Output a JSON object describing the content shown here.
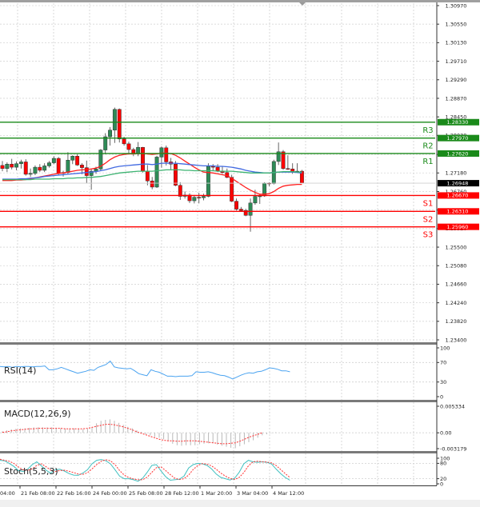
{
  "chart_data": {
    "type": "candlestick",
    "title": "",
    "instrument_note": "",
    "price_axis": {
      "min": 1.234,
      "max": 1.3097,
      "ticks": [
        "1.30970",
        "1.30550",
        "1.30130",
        "1.29710",
        "1.29290",
        "1.28870",
        "1.28450",
        "1.28030",
        "1.27600",
        "1.27180",
        "1.26760",
        "1.26340",
        "1.25920",
        "1.25500",
        "1.25080",
        "1.24660",
        "1.24240",
        "1.23820",
        "1.23400"
      ]
    },
    "time_axis": {
      "labels": [
        "04:00",
        "21 Feb 08:00",
        "22 Feb 16:00",
        "24 Feb 00:00",
        "25 Feb 08:00",
        "28 Feb 12:00",
        "1 Mar 20:00",
        "3 Mar 04:00",
        "4 Mar 12:00"
      ]
    },
    "current_price": {
      "value": "1.26948",
      "color": "#000000"
    },
    "levels": [
      {
        "name": "R3",
        "value": "1.28330",
        "color": "#1a8a1a",
        "type": "resistance"
      },
      {
        "name": "R2",
        "value": "1.27970",
        "color": "#1a8a1a",
        "type": "resistance"
      },
      {
        "name": "R1",
        "value": "1.27620",
        "color": "#1a8a1a",
        "type": "resistance"
      },
      {
        "name": "S1",
        "value": "1.26670",
        "color": "#ff0000",
        "type": "support"
      },
      {
        "name": "S2",
        "value": "1.26310",
        "color": "#ff0000",
        "type": "support"
      },
      {
        "name": "S3",
        "value": "1.25960",
        "color": "#ff0000",
        "type": "support"
      }
    ],
    "candles": [
      [
        1.2735,
        1.2745,
        1.2722,
        1.2728
      ],
      [
        1.2728,
        1.2742,
        1.272,
        1.2738
      ],
      [
        1.2738,
        1.275,
        1.2726,
        1.2731
      ],
      [
        1.2731,
        1.2744,
        1.2724,
        1.2739
      ],
      [
        1.2739,
        1.2748,
        1.2728,
        1.2743
      ],
      [
        1.2743,
        1.2749,
        1.2712,
        1.2715
      ],
      [
        1.2715,
        1.2728,
        1.2709,
        1.2717
      ],
      [
        1.2717,
        1.2735,
        1.2713,
        1.2731
      ],
      [
        1.2731,
        1.2738,
        1.272,
        1.2724
      ],
      [
        1.2724,
        1.274,
        1.272,
        1.2734
      ],
      [
        1.2734,
        1.2745,
        1.273,
        1.2741
      ],
      [
        1.2741,
        1.2756,
        1.2738,
        1.2751
      ],
      [
        1.2751,
        1.2754,
        1.2714,
        1.2717
      ],
      [
        1.2717,
        1.2723,
        1.271,
        1.2719
      ],
      [
        1.2719,
        1.2765,
        1.2715,
        1.2747
      ],
      [
        1.2747,
        1.2758,
        1.2738,
        1.2756
      ],
      [
        1.2756,
        1.276,
        1.2734,
        1.2736
      ],
      [
        1.2736,
        1.274,
        1.2715,
        1.273
      ],
      [
        1.273,
        1.2746,
        1.2695,
        1.2712
      ],
      [
        1.2712,
        1.2728,
        1.268,
        1.2722
      ],
      [
        1.2722,
        1.2732,
        1.2716,
        1.2727
      ],
      [
        1.2727,
        1.2772,
        1.2724,
        1.277
      ],
      [
        1.277,
        1.2808,
        1.276,
        1.28
      ],
      [
        1.28,
        1.2822,
        1.278,
        1.2815
      ],
      [
        1.2815,
        1.2866,
        1.2786,
        1.2862
      ],
      [
        1.2862,
        1.2864,
        1.2787,
        1.2795
      ],
      [
        1.2795,
        1.28,
        1.278,
        1.2784
      ],
      [
        1.2784,
        1.2789,
        1.2763,
        1.2771
      ],
      [
        1.2771,
        1.2775,
        1.2756,
        1.2761
      ],
      [
        1.2761,
        1.2788,
        1.2756,
        1.2776
      ],
      [
        1.2776,
        1.2777,
        1.2719,
        1.2722
      ],
      [
        1.2722,
        1.2736,
        1.269,
        1.27
      ],
      [
        1.27,
        1.2709,
        1.2681,
        1.2686
      ],
      [
        1.2686,
        1.2757,
        1.2684,
        1.2754
      ],
      [
        1.2754,
        1.2778,
        1.273,
        1.2775
      ],
      [
        1.2775,
        1.278,
        1.2735,
        1.2743
      ],
      [
        1.2743,
        1.2752,
        1.2726,
        1.2738
      ],
      [
        1.2738,
        1.2745,
        1.2688,
        1.269
      ],
      [
        1.269,
        1.2697,
        1.2657,
        1.2665
      ],
      [
        1.2665,
        1.2676,
        1.266,
        1.2668
      ],
      [
        1.2668,
        1.2672,
        1.265,
        1.2655
      ],
      [
        1.2655,
        1.2668,
        1.2649,
        1.2663
      ],
      [
        1.2663,
        1.2673,
        1.2649,
        1.2662
      ],
      [
        1.2662,
        1.2671,
        1.2656,
        1.2665
      ],
      [
        1.2665,
        1.274,
        1.2663,
        1.2733
      ],
      [
        1.2733,
        1.2738,
        1.2722,
        1.2731
      ],
      [
        1.2731,
        1.2738,
        1.272,
        1.2722
      ],
      [
        1.2722,
        1.2733,
        1.2716,
        1.2719
      ],
      [
        1.2719,
        1.2728,
        1.2706,
        1.2708
      ],
      [
        1.2708,
        1.2714,
        1.2652,
        1.2654
      ],
      [
        1.2654,
        1.266,
        1.2633,
        1.2636
      ],
      [
        1.2636,
        1.2641,
        1.263,
        1.2633
      ],
      [
        1.2633,
        1.2637,
        1.262,
        1.2622
      ],
      [
        1.2622,
        1.266,
        1.2585,
        1.265
      ],
      [
        1.265,
        1.268,
        1.2646,
        1.2665
      ],
      [
        1.2665,
        1.267,
        1.2648,
        1.2666
      ],
      [
        1.2666,
        1.2697,
        1.2664,
        1.2695
      ],
      [
        1.2695,
        1.2697,
        1.2688,
        1.2694
      ],
      [
        1.2694,
        1.2748,
        1.2692,
        1.2744
      ],
      [
        1.2744,
        1.2787,
        1.2736,
        1.2766
      ],
      [
        1.2766,
        1.277,
        1.2725,
        1.2728
      ],
      [
        1.2728,
        1.2758,
        1.2725,
        1.2727
      ],
      [
        1.2727,
        1.274,
        1.2716,
        1.272
      ],
      [
        1.272,
        1.274,
        1.2718,
        1.2722
      ],
      [
        1.2722,
        1.2725,
        1.2695,
        1.2695
      ]
    ],
    "moving_averages": [
      {
        "name": "MA red",
        "color": "#ff2020",
        "values": [
          1.2701,
          1.2701,
          1.2701,
          1.2702,
          1.2702,
          1.2703,
          1.2705,
          1.2707,
          1.2709,
          1.2711,
          1.2713,
          1.2715,
          1.2717,
          1.2718,
          1.272,
          1.2722,
          1.2724,
          1.2725,
          1.2726,
          1.2727,
          1.2729,
          1.2733,
          1.274,
          1.2748,
          1.2754,
          1.2758,
          1.276,
          1.2761,
          1.2761,
          1.2762,
          1.2762,
          1.2761,
          1.276,
          1.2761,
          1.2763,
          1.2763,
          1.2762,
          1.2758,
          1.2752,
          1.2745,
          1.2738,
          1.2731,
          1.2725,
          1.272,
          1.2719,
          1.2718,
          1.2716,
          1.2714,
          1.2712,
          1.2706,
          1.2699,
          1.2692,
          1.2685,
          1.2679,
          1.2674,
          1.267,
          1.267,
          1.2671,
          1.2676,
          1.2683,
          1.2688,
          1.269,
          1.2691,
          1.2692,
          1.2692
        ]
      },
      {
        "name": "MA blue",
        "color": "#4169e1",
        "values": [
          1.2704,
          1.2704,
          1.2704,
          1.2704,
          1.2705,
          1.2705,
          1.2706,
          1.2707,
          1.2708,
          1.271,
          1.2711,
          1.2712,
          1.2713,
          1.2714,
          1.2715,
          1.2716,
          1.2717,
          1.2718,
          1.2719,
          1.272,
          1.2721,
          1.2723,
          1.2725,
          1.2728,
          1.2731,
          1.2733,
          1.2734,
          1.2735,
          1.2736,
          1.2737,
          1.2738,
          1.2738,
          1.2737,
          1.2738,
          1.274,
          1.274,
          1.274,
          1.274,
          1.2739,
          1.2738,
          1.2737,
          1.2736,
          1.2735,
          1.2734,
          1.2734,
          1.2734,
          1.2733,
          1.2733,
          1.2732,
          1.2731,
          1.2729,
          1.2727,
          1.2724,
          1.2722,
          1.272,
          1.2719,
          1.2718,
          1.2718,
          1.2719,
          1.272,
          1.272,
          1.272,
          1.272,
          1.2719,
          1.2718
        ]
      },
      {
        "name": "MA green",
        "color": "#3cb371",
        "values": [
          1.2703,
          1.2703,
          1.2703,
          1.2703,
          1.2703,
          1.2703,
          1.2703,
          1.2704,
          1.2704,
          1.2704,
          1.2704,
          1.2705,
          1.2705,
          1.2705,
          1.2706,
          1.2706,
          1.2707,
          1.2707,
          1.2708,
          1.2708,
          1.2709,
          1.271,
          1.2712,
          1.2714,
          1.2716,
          1.2718,
          1.2719,
          1.272,
          1.2721,
          1.2722,
          1.2722,
          1.2722,
          1.2722,
          1.2723,
          1.2724,
          1.2725,
          1.2725,
          1.2725,
          1.2725,
          1.2724,
          1.2724,
          1.2723,
          1.2723,
          1.2723,
          1.2723,
          1.2723,
          1.2722,
          1.2722,
          1.2722,
          1.2722,
          1.2721,
          1.272,
          1.2719,
          1.2718,
          1.2718,
          1.2718,
          1.2718,
          1.2718,
          1.2719,
          1.272,
          1.2721,
          1.2721,
          1.2721,
          1.272,
          1.272
        ]
      }
    ],
    "rsi": {
      "label": "RSI(14)",
      "ticks": [
        "100",
        "70",
        "30",
        "0"
      ],
      "values": [
        62,
        61,
        62,
        60,
        62,
        61,
        62,
        62,
        61,
        62,
        62,
        63,
        55,
        55,
        57,
        60,
        57,
        54,
        51,
        48,
        50,
        52,
        55,
        54,
        60,
        63,
        66,
        73,
        61,
        59,
        58,
        57,
        58,
        53,
        47,
        45,
        43,
        55,
        52,
        50,
        46,
        42,
        42,
        41,
        42,
        42,
        42,
        43,
        51,
        50,
        50,
        51,
        49,
        46,
        44,
        43,
        40,
        36,
        40,
        44,
        47,
        49,
        48,
        51,
        52,
        55,
        59,
        58,
        56,
        53,
        53,
        51
      ]
    },
    "macd": {
      "label": "MACD(12,26,9)",
      "ticks": [
        "0.005334",
        "0.00",
        "-0.003179"
      ],
      "histogram": [
        0.0003,
        0.0005,
        0.0007,
        0.0008,
        0.0009,
        0.0009,
        0.001,
        0.0011,
        0.0011,
        0.0011,
        0.0011,
        0.0011,
        0.001,
        0.0009,
        0.0009,
        0.0009,
        0.0009,
        0.0008,
        0.0007,
        0.0008,
        0.0011,
        0.0019,
        0.0024,
        0.0026,
        0.0027,
        0.0024,
        0.002,
        0.0016,
        0.0012,
        0.0009,
        0.0005,
        0.0002,
        -0.0003,
        -0.0005,
        -0.0008,
        -0.001,
        -0.0013,
        -0.0017,
        -0.0022,
        -0.0025,
        -0.0026,
        -0.0025,
        -0.0025,
        -0.0025,
        -0.0023,
        -0.0022,
        -0.0021,
        -0.0021,
        -0.0024,
        -0.0026,
        -0.0028,
        -0.003,
        -0.0031,
        -0.0027,
        -0.0023,
        -0.0019,
        -0.0015,
        -0.001,
        -0.0005,
        -0.0003,
        -0.0001,
        0.0001
      ],
      "signal": [
        0.0001,
        0.0002,
        0.0004,
        0.0005,
        0.0006,
        0.0007,
        0.0008,
        0.0008,
        0.0009,
        0.0009,
        0.0009,
        0.0009,
        0.0009,
        0.0009,
        0.0008,
        0.0008,
        0.0008,
        0.0008,
        0.0008,
        0.0009,
        0.0011,
        0.0013,
        0.0015,
        0.0017,
        0.0017,
        0.0016,
        0.0014,
        0.0012,
        0.0009,
        0.0006,
        0.0002,
        -0.0001,
        -0.0004,
        -0.0007,
        -0.001,
        -0.0013,
        -0.0015,
        -0.0016,
        -0.0016,
        -0.0017,
        -0.0017,
        -0.0016,
        -0.0016,
        -0.0016,
        -0.0017,
        -0.0018,
        -0.0019,
        -0.002,
        -0.0021,
        -0.0022,
        -0.0022,
        -0.0021,
        -0.002,
        -0.0017,
        -0.0013,
        -0.0009,
        -0.0006,
        -0.0003,
        0.0
      ]
    },
    "stoch": {
      "label": "Stoch(5,5,3)",
      "ticks": [
        "100",
        "80",
        "20",
        "0"
      ],
      "main": [
        92,
        90,
        80,
        68,
        52,
        48,
        57,
        75,
        86,
        70,
        53,
        42,
        55,
        57,
        50,
        40,
        34,
        33,
        42,
        55,
        78,
        92,
        95,
        90,
        78,
        55,
        30,
        20,
        20,
        16,
        10,
        22,
        45,
        72,
        75,
        50,
        28,
        14,
        16,
        18,
        30,
        62,
        75,
        80,
        78,
        72,
        58,
        38,
        25,
        20,
        15,
        22,
        45,
        78,
        92,
        86,
        84,
        86,
        84,
        78,
        58,
        40,
        25,
        14
      ],
      "signal": [
        96,
        92,
        88,
        80,
        66,
        55,
        53,
        58,
        72,
        78,
        67,
        54,
        48,
        52,
        53,
        49,
        44,
        38,
        37,
        43,
        58,
        75,
        88,
        94,
        90,
        75,
        52,
        34,
        24,
        19,
        16,
        16,
        26,
        45,
        63,
        66,
        52,
        36,
        22,
        17,
        20,
        34,
        56,
        72,
        79,
        77,
        70,
        57,
        42,
        30,
        21,
        17,
        25,
        44,
        70,
        86,
        88,
        86,
        85,
        82,
        72,
        56,
        40,
        25
      ]
    }
  }
}
